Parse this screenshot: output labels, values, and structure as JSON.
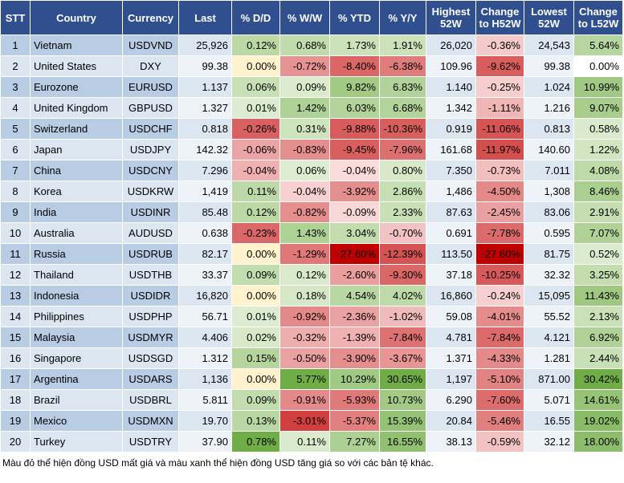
{
  "table": {
    "header": [
      "STT",
      "Country",
      "Currency",
      "Last",
      "% D/D",
      "% W/W",
      "% YTD",
      "% Y/Y",
      "Highest 52W",
      "Change to H52W",
      "Lowest 52W",
      "Change to L52W"
    ],
    "rows": [
      [
        "1",
        "Vietnam",
        "USDVND",
        "25,926",
        "0.12%",
        "0.68%",
        "1.73%",
        "1.91%",
        "26,020",
        "-0.36%",
        "24,543",
        "5.64%"
      ],
      [
        "2",
        "United States",
        "DXY",
        "99.38",
        "0.00%",
        "-0.72%",
        "-8.40%",
        "-6.38%",
        "109.96",
        "-9.62%",
        "99.38",
        "0.00%"
      ],
      [
        "3",
        "Eurozone",
        "EURUSD",
        "1.137",
        "0.06%",
        "0.09%",
        "9.82%",
        "6.83%",
        "1.140",
        "-0.25%",
        "1.024",
        "10.99%"
      ],
      [
        "4",
        "United Kingdom",
        "GBPUSD",
        "1.327",
        "0.01%",
        "1.42%",
        "6.03%",
        "6.68%",
        "1.342",
        "-1.11%",
        "1.216",
        "9.07%"
      ],
      [
        "5",
        "Switzerland",
        "USDCHF",
        "0.818",
        "-0.26%",
        "0.31%",
        "-9.88%",
        "-10.36%",
        "0.919",
        "-11.06%",
        "0.813",
        "0.58%"
      ],
      [
        "6",
        "Japan",
        "USDJPY",
        "142.32",
        "-0.06%",
        "-0.83%",
        "-9.45%",
        "-7.96%",
        "161.68",
        "-11.97%",
        "140.60",
        "1.22%"
      ],
      [
        "7",
        "China",
        "USDCNY",
        "7.296",
        "-0.04%",
        "0.06%",
        "-0.04%",
        "0.80%",
        "7.350",
        "-0.73%",
        "7.011",
        "4.08%"
      ],
      [
        "8",
        "Korea",
        "USDKRW",
        "1,419",
        "0.11%",
        "-0.04%",
        "-3.92%",
        "2.86%",
        "1,486",
        "-4.50%",
        "1,308",
        "8.46%"
      ],
      [
        "9",
        "India",
        "USDINR",
        "85.48",
        "0.12%",
        "-0.82%",
        "-0.09%",
        "2.33%",
        "87.63",
        "-2.45%",
        "83.06",
        "2.91%"
      ],
      [
        "10",
        "Australia",
        "AUDUSD",
        "0.638",
        "-0.23%",
        "1.43%",
        "3.04%",
        "-0.70%",
        "0.691",
        "-7.78%",
        "0.595",
        "7.07%"
      ],
      [
        "11",
        "Russia",
        "USDRUB",
        "82.17",
        "0.00%",
        "-1.29%",
        "-27.60%",
        "-12.39%",
        "113.50",
        "-27.60%",
        "81.75",
        "0.52%"
      ],
      [
        "12",
        "Thailand",
        "USDTHB",
        "33.37",
        "0.09%",
        "0.12%",
        "-2.60%",
        "-9.30%",
        "37.18",
        "-10.25%",
        "32.32",
        "3.25%"
      ],
      [
        "13",
        "Indonesia",
        "USDIDR",
        "16,820",
        "0.00%",
        "0.18%",
        "4.54%",
        "4.02%",
        "16,860",
        "-0.24%",
        "15,095",
        "11.43%"
      ],
      [
        "14",
        "Philippines",
        "USDPHP",
        "56.71",
        "0.01%",
        "-0.92%",
        "-2.36%",
        "-1.02%",
        "59.08",
        "-4.01%",
        "55.52",
        "2.13%"
      ],
      [
        "15",
        "Malaysia",
        "USDMYR",
        "4.406",
        "0.02%",
        "-0.32%",
        "-1.39%",
        "-7.84%",
        "4.781",
        "-7.84%",
        "4.121",
        "6.92%"
      ],
      [
        "16",
        "Singapore",
        "USDSGD",
        "1.312",
        "0.15%",
        "-0.50%",
        "-3.90%",
        "-3.67%",
        "1.371",
        "-4.33%",
        "1.281",
        "2.44%"
      ],
      [
        "17",
        "Argentina",
        "USDARS",
        "1,136",
        "0.00%",
        "5.77%",
        "10.29%",
        "30.65%",
        "1,197",
        "-5.10%",
        "871.00",
        "30.42%"
      ],
      [
        "18",
        "Brazil",
        "USDBRL",
        "5.811",
        "0.09%",
        "-0.91%",
        "-5.93%",
        "10.73%",
        "6.290",
        "-7.60%",
        "5.071",
        "14.61%"
      ],
      [
        "19",
        "Mexico",
        "USDMXN",
        "19.70",
        "0.13%",
        "-3.01%",
        "-5.37%",
        "15.39%",
        "20.84",
        "-5.46%",
        "16.55",
        "19.02%"
      ],
      [
        "20",
        "Turkey",
        "USDTRY",
        "37.90",
        "0.78%",
        "0.11%",
        "7.27%",
        "16.55%",
        "38.13",
        "-0.59%",
        "32.12",
        "18.00%"
      ]
    ]
  },
  "footnote": "Màu đỏ thể hiện đồng USD mất giá và màu xanh thể hiện đồng USD tăng giá so với các bản tệ khác."
}
